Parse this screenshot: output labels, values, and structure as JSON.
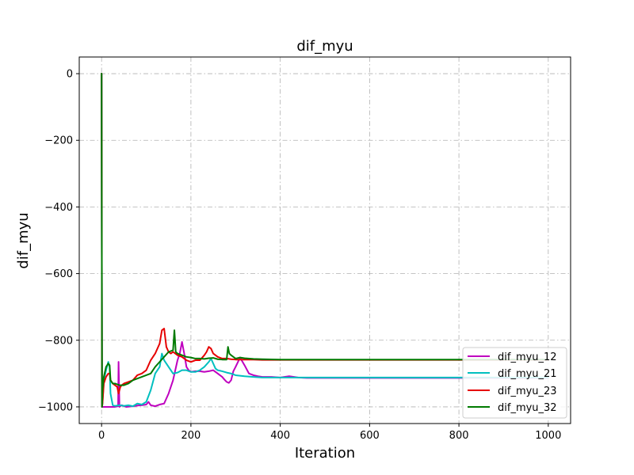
{
  "chart_data": {
    "type": "line",
    "title": "dif_myu",
    "xlabel": "Iteration",
    "ylabel": "dif_myu",
    "xlim": [
      -50,
      1050
    ],
    "ylim": [
      -1050,
      50
    ],
    "xticks": [
      0,
      200,
      400,
      600,
      800,
      1000
    ],
    "xtick_labels": [
      "0",
      "200",
      "400",
      "600",
      "800",
      "1000"
    ],
    "yticks": [
      0,
      -200,
      -400,
      -600,
      -800,
      -1000
    ],
    "ytick_labels": [
      "0",
      "−200",
      "−400",
      "−600",
      "−800",
      "−1000"
    ],
    "grid": true,
    "grid_style": "dash-dot",
    "legend_position": "lower-right",
    "series": [
      {
        "name": "dif_myu_12",
        "color": "#bf00bf",
        "x": [
          0,
          1,
          2,
          10,
          20,
          30,
          37,
          38,
          40,
          45,
          55,
          70,
          80,
          90,
          100,
          105,
          110,
          120,
          130,
          140,
          150,
          160,
          170,
          175,
          180,
          185,
          190,
          195,
          200,
          210,
          220,
          230,
          240,
          250,
          260,
          270,
          275,
          280,
          285,
          290,
          295,
          300,
          310,
          320,
          330,
          340,
          350,
          360,
          380,
          400,
          420,
          440,
          460,
          500,
          600,
          700,
          800,
          900,
          1000
        ],
        "y": [
          0,
          -1000,
          -1000,
          -1000,
          -1000,
          -1000,
          -998,
          -865,
          -1000,
          -995,
          -1000,
          -998,
          -996,
          -995,
          -993,
          -985,
          -995,
          -998,
          -993,
          -990,
          -960,
          -920,
          -860,
          -840,
          -805,
          -840,
          -880,
          -890,
          -895,
          -893,
          -893,
          -895,
          -893,
          -890,
          -900,
          -910,
          -918,
          -925,
          -928,
          -920,
          -893,
          -880,
          -852,
          -875,
          -900,
          -905,
          -908,
          -910,
          -910,
          -912,
          -908,
          -912,
          -913,
          -913,
          -913,
          -913,
          -913,
          -913,
          -913
        ]
      },
      {
        "name": "dif_myu_21",
        "color": "#00bfbf",
        "x": [
          0,
          1,
          2,
          5,
          10,
          15,
          18,
          20,
          25,
          30,
          40,
          50,
          60,
          70,
          80,
          90,
          100,
          110,
          120,
          130,
          135,
          140,
          150,
          160,
          170,
          180,
          190,
          200,
          210,
          220,
          230,
          240,
          245,
          250,
          255,
          260,
          270,
          280,
          290,
          300,
          320,
          340,
          360,
          400,
          500,
          600,
          700,
          800,
          900,
          1000
        ],
        "y": [
          0,
          -1000,
          -990,
          -920,
          -890,
          -865,
          -880,
          -960,
          -995,
          -997,
          -995,
          -997,
          -995,
          -998,
          -990,
          -993,
          -985,
          -950,
          -900,
          -880,
          -840,
          -860,
          -880,
          -900,
          -897,
          -890,
          -890,
          -895,
          -895,
          -890,
          -880,
          -865,
          -855,
          -870,
          -885,
          -890,
          -893,
          -897,
          -900,
          -905,
          -908,
          -910,
          -912,
          -912,
          -912,
          -912,
          -912,
          -912,
          -912,
          -912
        ]
      },
      {
        "name": "dif_myu_23",
        "color": "#e60000",
        "x": [
          0,
          1,
          2,
          5,
          10,
          15,
          18,
          20,
          25,
          30,
          35,
          38,
          40,
          42,
          45,
          50,
          60,
          70,
          80,
          90,
          100,
          110,
          120,
          130,
          135,
          140,
          145,
          150,
          155,
          160,
          170,
          180,
          190,
          200,
          210,
          220,
          230,
          235,
          240,
          245,
          250,
          260,
          270,
          280,
          290,
          300,
          320,
          340,
          360,
          380,
          400,
          500,
          600,
          700,
          800,
          900,
          1000
        ],
        "y": [
          0,
          -1000,
          -990,
          -930,
          -910,
          -900,
          -900,
          -920,
          -930,
          -935,
          -940,
          -960,
          -950,
          -940,
          -935,
          -930,
          -925,
          -920,
          -905,
          -900,
          -890,
          -860,
          -840,
          -810,
          -770,
          -765,
          -820,
          -835,
          -840,
          -835,
          -845,
          -850,
          -860,
          -865,
          -860,
          -860,
          -845,
          -835,
          -820,
          -825,
          -840,
          -850,
          -855,
          -855,
          -857,
          -858,
          -858,
          -858,
          -859,
          -859,
          -859,
          -859,
          -859,
          -859,
          -859,
          -859,
          -859
        ]
      },
      {
        "name": "dif_myu_32",
        "color": "#007a00",
        "x": [
          0,
          1,
          2,
          5,
          10,
          15,
          18,
          20,
          25,
          30,
          40,
          50,
          60,
          70,
          80,
          90,
          100,
          110,
          120,
          130,
          140,
          150,
          160,
          163,
          166,
          170,
          180,
          190,
          200,
          210,
          220,
          230,
          240,
          250,
          260,
          270,
          280,
          283,
          286,
          290,
          300,
          310,
          320,
          340,
          360,
          400,
          500,
          600,
          700,
          800,
          900,
          1000
        ],
        "y": [
          0,
          -1000,
          -950,
          -910,
          -880,
          -870,
          -875,
          -920,
          -930,
          -930,
          -935,
          -935,
          -930,
          -920,
          -915,
          -910,
          -905,
          -900,
          -880,
          -865,
          -850,
          -835,
          -830,
          -770,
          -835,
          -840,
          -845,
          -850,
          -852,
          -855,
          -855,
          -856,
          -854,
          -853,
          -857,
          -858,
          -858,
          -820,
          -840,
          -845,
          -855,
          -852,
          -854,
          -856,
          -857,
          -858,
          -858,
          -858,
          -858,
          -858,
          -858,
          -858
        ]
      }
    ]
  }
}
